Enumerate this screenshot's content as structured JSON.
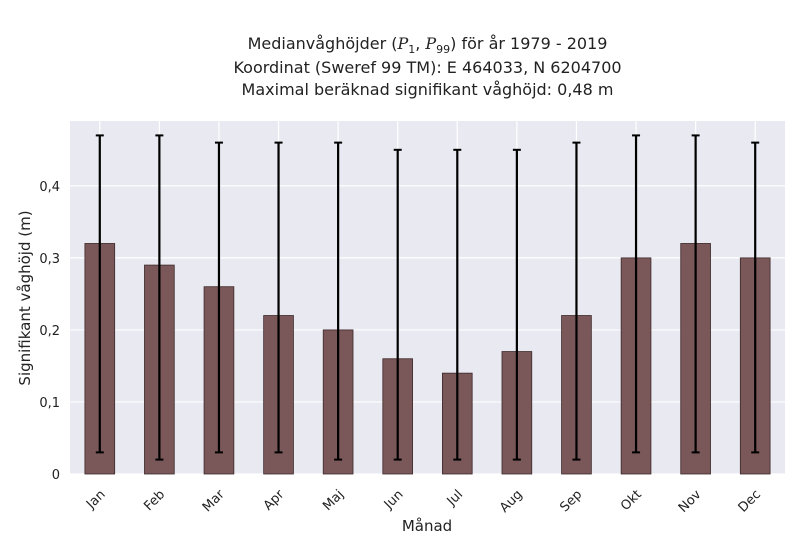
{
  "chart_data": {
    "type": "bar",
    "title_lines": {
      "line1_prefix": "Medianvåghöjder (",
      "p1_sub": "1",
      "p99_sub": "99",
      "line1_suffix": ") för år 1979 - 2019",
      "line2": "Koordinat (Sweref 99 TM): E 464033, N 6204700",
      "line3": "Maximal beräknad signifikant våghöjd: 0,48 m"
    },
    "xlabel": "Månad",
    "ylabel": "Signifikant våghöjd (m)",
    "ylim": [
      0,
      0.49
    ],
    "yticks": [
      0,
      0.1,
      0.2,
      0.3,
      0.4
    ],
    "ytick_labels": [
      "0",
      "0,1",
      "0,2",
      "0,3",
      "0,4"
    ],
    "categories": [
      "Jan",
      "Feb",
      "Mar",
      "Apr",
      "Maj",
      "Jun",
      "Jul",
      "Aug",
      "Sep",
      "Okt",
      "Nov",
      "Dec"
    ],
    "values": [
      0.32,
      0.29,
      0.26,
      0.22,
      0.2,
      0.16,
      0.14,
      0.17,
      0.22,
      0.3,
      0.32,
      0.3
    ],
    "error_low": [
      0.03,
      0.02,
      0.03,
      0.03,
      0.02,
      0.02,
      0.02,
      0.02,
      0.02,
      0.03,
      0.03,
      0.03
    ],
    "error_high": [
      0.47,
      0.47,
      0.46,
      0.46,
      0.46,
      0.45,
      0.45,
      0.45,
      0.46,
      0.47,
      0.47,
      0.46
    ],
    "grid": true,
    "colors": {
      "bar": "#7a5758",
      "bar_edge": "#3d2a2b",
      "plot_bg": "#e9e9f1",
      "grid": "#ffffff",
      "error": "#000000"
    }
  }
}
